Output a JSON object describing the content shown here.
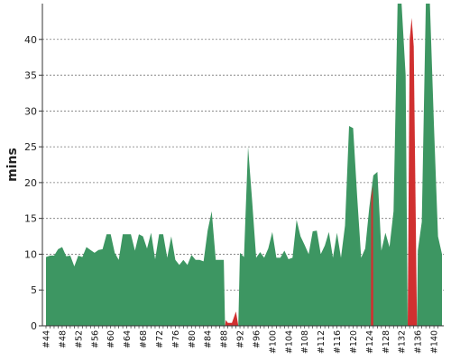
{
  "chart_data": {
    "type": "area",
    "ylabel": "mins",
    "ylim": [
      0,
      45
    ],
    "yticks": [
      0,
      5,
      10,
      15,
      20,
      25,
      30,
      35,
      40
    ],
    "grid": true,
    "x_tick_labels": [
      "#44",
      "#48",
      "#52",
      "#56",
      "#60",
      "#64",
      "#68",
      "#72",
      "#76",
      "#80",
      "#84",
      "#88",
      "#92",
      "#96",
      "#100",
      "#104",
      "#108",
      "#112",
      "#116",
      "#120",
      "#124",
      "#128",
      "#132",
      "#136",
      "#140"
    ],
    "x_start": 44,
    "x_end": 141,
    "colors": {
      "success": "#3d9662",
      "failure": "#d03030"
    },
    "series": [
      {
        "status": "success",
        "points": [
          [
            44,
            9.6
          ],
          [
            45,
            9.8
          ],
          [
            46,
            9.8
          ],
          [
            47,
            10.7
          ],
          [
            48,
            11.0
          ],
          [
            49,
            9.7
          ],
          [
            50,
            9.8
          ],
          [
            51,
            8.3
          ],
          [
            52,
            9.8
          ],
          [
            53,
            9.6
          ],
          [
            54,
            11.0
          ],
          [
            55,
            10.6
          ],
          [
            56,
            10.2
          ],
          [
            57,
            10.6
          ],
          [
            58,
            10.7
          ],
          [
            59,
            12.8
          ],
          [
            60,
            12.8
          ],
          [
            61,
            10.2
          ],
          [
            62,
            9.2
          ],
          [
            63,
            12.8
          ],
          [
            64,
            12.8
          ],
          [
            65,
            12.8
          ],
          [
            66,
            10.5
          ],
          [
            67,
            12.8
          ],
          [
            68,
            12.5
          ],
          [
            69,
            10.8
          ],
          [
            70,
            13.0
          ],
          [
            71,
            9.3
          ],
          [
            72,
            12.8
          ],
          [
            73,
            12.8
          ],
          [
            74,
            9.5
          ],
          [
            75,
            12.5
          ],
          [
            76,
            9.2
          ],
          [
            77,
            8.5
          ],
          [
            78,
            9.2
          ],
          [
            79,
            8.5
          ],
          [
            80,
            9.9
          ],
          [
            81,
            9.2
          ],
          [
            82,
            9.2
          ],
          [
            83,
            9.0
          ],
          [
            84,
            13.3
          ],
          [
            85,
            16.0
          ],
          [
            86,
            9.2
          ],
          [
            87,
            9.2
          ],
          [
            88,
            9.2
          ],
          [
            88.3,
            0
          ]
        ]
      },
      {
        "status": "failure",
        "points": [
          [
            88.3,
            0
          ],
          [
            88.5,
            0.8
          ],
          [
            89,
            0.4
          ],
          [
            90,
            0.4
          ],
          [
            91,
            2.0
          ],
          [
            91.6,
            0
          ]
        ]
      },
      {
        "status": "success",
        "points": [
          [
            91.6,
            0
          ],
          [
            92,
            10.2
          ],
          [
            93,
            9.6
          ],
          [
            94,
            25.0
          ],
          [
            95,
            17.5
          ],
          [
            96,
            9.5
          ],
          [
            97,
            10.3
          ],
          [
            98,
            9.5
          ],
          [
            99,
            10.8
          ],
          [
            100,
            13.1
          ],
          [
            101,
            9.5
          ],
          [
            102,
            9.5
          ],
          [
            103,
            10.5
          ],
          [
            104,
            9.3
          ],
          [
            105,
            9.5
          ],
          [
            106,
            14.8
          ],
          [
            107,
            12.5
          ],
          [
            108,
            11.3
          ],
          [
            109,
            10.0
          ],
          [
            110,
            13.2
          ],
          [
            111,
            13.3
          ],
          [
            112,
            10.0
          ],
          [
            113,
            11.2
          ],
          [
            114,
            13.1
          ],
          [
            115,
            9.5
          ],
          [
            116,
            13.0
          ],
          [
            117,
            9.5
          ],
          [
            118,
            14.0
          ],
          [
            119,
            27.9
          ],
          [
            120,
            27.6
          ],
          [
            121,
            18.0
          ],
          [
            122,
            9.5
          ],
          [
            123,
            10.8
          ],
          [
            124,
            16.5
          ],
          [
            125,
            21.0
          ],
          [
            126,
            21.5
          ],
          [
            127,
            10.5
          ],
          [
            128,
            13.0
          ],
          [
            129,
            11.0
          ],
          [
            130,
            16.0
          ],
          [
            131,
            45
          ],
          [
            132,
            45
          ],
          [
            133,
            35.0
          ],
          [
            133.5,
            0
          ]
        ]
      },
      {
        "status": "failure",
        "points": [
          [
            124.4,
            0
          ],
          [
            124.5,
            18.0
          ],
          [
            124.9,
            19.5
          ],
          [
            125,
            0
          ]
        ]
      },
      {
        "status": "failure",
        "points": [
          [
            133.5,
            0
          ],
          [
            134,
            40.0
          ],
          [
            134.5,
            43.0
          ],
          [
            135,
            39.0
          ],
          [
            135.8,
            0
          ]
        ]
      },
      {
        "status": "success",
        "points": [
          [
            135.8,
            0
          ],
          [
            136,
            10.5
          ],
          [
            137,
            14.5
          ],
          [
            138,
            45
          ],
          [
            139,
            45
          ],
          [
            140,
            28.0
          ],
          [
            141,
            12.5
          ],
          [
            142,
            10.0
          ],
          [
            142,
            0
          ]
        ]
      }
    ]
  }
}
